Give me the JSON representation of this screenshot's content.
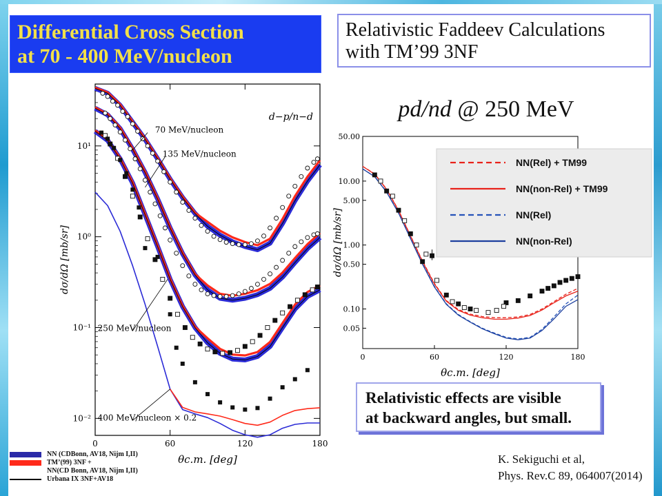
{
  "slide": {
    "title_lines": [
      "Differential Cross Section",
      "at 70 - 400 MeV/nucleon"
    ],
    "subtitle_lines": [
      "Relativistic Faddeev Calculations",
      "with TM’99 3NF"
    ],
    "panel_title_italic": "pd/nd",
    "panel_title_rest": " @ 250 MeV",
    "note_lines": [
      "Relativistic effects are visible",
      "at backward angles, but small."
    ],
    "citation_lines": [
      "K. Sekiguchi et al,",
      "Phys. Rev.C 89, 064007(2014)"
    ],
    "bottom_legend": [
      {
        "label": "NN (CDBonn, AV18, Nijm I,II)",
        "color": "#2a2aa8"
      },
      {
        "label": "TM’(99) 3NF +",
        "color": "#ff2a1a"
      },
      {
        "label": "NN(CD Bonn, AV18, Nijm I,II)",
        "color": ""
      },
      {
        "label": "Urbana IX 3NF+AV18",
        "color": "#000000"
      }
    ]
  },
  "chart_data": [
    {
      "type": "scatter",
      "panel": "left",
      "xlabel": "θc.m. [deg]",
      "ylabel": "dσ/dΩ [mb/sr]",
      "xlim": [
        0,
        180
      ],
      "ylim": [
        0.0065,
        48
      ],
      "log_y": true,
      "x_ticks": [
        0,
        60,
        120,
        180
      ],
      "y_ticks": [
        {
          "v": 10,
          "label": "10¹"
        },
        {
          "v": 1,
          "label": "10⁰"
        },
        {
          "v": 0.1,
          "label": "10⁻¹"
        },
        {
          "v": 0.01,
          "label": "10⁻²"
        }
      ],
      "reaction_label": "d−p/n−d",
      "annotations": [
        {
          "text": "70 MeV/nucleon",
          "x": 48,
          "y": 14
        },
        {
          "text": "135 MeV/nucleon",
          "x": 54,
          "y": 7.6
        },
        {
          "text": "250 MeV/nucleon",
          "x": 2,
          "y": 0.092
        },
        {
          "text": "400 MeV/nucleon × 0.2",
          "x": 2,
          "y": 0.0095
        }
      ],
      "series": [
        {
          "energy": "70 MeV/nucleon",
          "band_color": "#2b2bd6",
          "x": [
            0,
            10,
            20,
            30,
            40,
            50,
            60,
            70,
            80,
            90,
            100,
            110,
            120,
            130,
            140,
            150,
            160,
            170,
            180
          ],
          "y": [
            43,
            38,
            28,
            18.2,
            11.8,
            7.2,
            4.3,
            2.7,
            1.8,
            1.3,
            1.04,
            0.88,
            0.78,
            0.72,
            0.85,
            1.4,
            2.5,
            4.1,
            6.2
          ]
        },
        {
          "energy": "135 MeV/nucleon",
          "band_color": "#2b2bd6",
          "x": [
            0,
            10,
            20,
            30,
            40,
            50,
            60,
            70,
            80,
            90,
            100,
            110,
            120,
            130,
            140,
            150,
            160,
            170,
            180
          ],
          "y": [
            26,
            22,
            15.5,
            9.2,
            5.1,
            2.6,
            1.25,
            0.65,
            0.38,
            0.26,
            0.21,
            0.2,
            0.21,
            0.23,
            0.27,
            0.36,
            0.52,
            0.74,
            0.98
          ]
        },
        {
          "energy": "250 MeV/nucleon",
          "band_color": "#2b2bd6",
          "x": [
            0,
            10,
            20,
            30,
            40,
            50,
            60,
            70,
            80,
            90,
            100,
            110,
            120,
            130,
            140,
            150,
            160,
            170,
            180
          ],
          "y": [
            14.5,
            11.5,
            7.2,
            3.9,
            1.75,
            0.78,
            0.34,
            0.17,
            0.1,
            0.068,
            0.052,
            0.045,
            0.044,
            0.048,
            0.062,
            0.1,
            0.16,
            0.22,
            0.26
          ]
        },
        {
          "energy": "400 MeV/nucleon × 0.2",
          "band_color": "#2b2bd6",
          "x": [
            0,
            10,
            20,
            30,
            40,
            50,
            60,
            70,
            80,
            90,
            100,
            110,
            120,
            130,
            140,
            150,
            160,
            170,
            180
          ],
          "y": [
            3.1,
            2.2,
            1.15,
            0.48,
            0.18,
            0.062,
            0.021,
            0.0125,
            0.0112,
            0.0102,
            0.0088,
            0.0074,
            0.0066,
            0.0062,
            0.0066,
            0.0078,
            0.0086,
            0.0089,
            0.0089
          ]
        },
        {
          "energy": "400 MeV/nucleon × 0.2 (TM99)",
          "band_color": "#ff2a1a",
          "x": [
            60,
            70,
            80,
            90,
            100,
            110,
            120,
            130,
            140,
            150,
            160,
            170,
            180
          ],
          "y": [
            0.021,
            0.0132,
            0.0118,
            0.0112,
            0.0106,
            0.0097,
            0.0088,
            0.0084,
            0.0091,
            0.0108,
            0.0122,
            0.0128,
            0.0131
          ]
        }
      ],
      "data_points": [
        {
          "energy": "70 MeV/nucleon",
          "x": [
            6,
            10,
            14,
            18,
            22,
            26,
            30,
            34,
            38,
            42,
            46,
            50,
            55,
            60,
            65,
            70,
            75,
            80,
            85,
            90,
            95,
            100,
            105,
            110,
            115,
            120,
            125,
            130,
            135,
            140,
            145,
            150,
            155,
            160,
            165,
            170,
            175,
            178
          ],
          "y": [
            38,
            35,
            31,
            28,
            24,
            21,
            17.5,
            14.5,
            12,
            10,
            8.3,
            6.8,
            5.2,
            4,
            3.1,
            2.4,
            1.95,
            1.6,
            1.33,
            1.15,
            1.01,
            0.93,
            0.87,
            0.84,
            0.82,
            0.82,
            0.84,
            0.9,
            1.02,
            1.25,
            1.6,
            2.1,
            2.8,
            3.6,
            4.6,
            5.7,
            6.6,
            7.2
          ]
        },
        {
          "energy": "135 MeV/nucleon",
          "x": [
            8,
            12,
            16,
            20,
            24,
            28,
            32,
            36,
            40,
            44,
            48,
            52,
            56,
            60,
            65,
            70,
            75,
            80,
            85,
            90,
            95,
            100,
            105,
            110,
            115,
            120,
            125,
            130,
            135,
            140,
            145,
            150,
            155,
            160,
            165,
            170,
            175,
            178
          ],
          "y": [
            23,
            20,
            17,
            14.2,
            11.6,
            9.3,
            7.2,
            5.6,
            4.2,
            3.1,
            2.3,
            1.7,
            1.25,
            0.92,
            0.66,
            0.48,
            0.37,
            0.3,
            0.26,
            0.235,
            0.225,
            0.22,
            0.22,
            0.225,
            0.235,
            0.25,
            0.27,
            0.3,
            0.34,
            0.39,
            0.46,
            0.55,
            0.66,
            0.78,
            0.88,
            0.98,
            1.05,
            1.08
          ]
        },
        {
          "energy": "250 MeV/nucleon",
          "x": [
            8,
            12,
            18,
            24,
            30,
            36,
            42,
            48,
            54,
            60,
            66,
            72,
            78,
            84,
            90,
            96,
            102,
            108,
            114,
            120,
            126,
            132,
            138,
            144,
            150,
            156,
            162,
            168,
            174,
            178
          ],
          "y": [
            13,
            10.5,
            7.3,
            4.6,
            2.8,
            1.65,
            0.95,
            0.56,
            0.34,
            0.21,
            0.14,
            0.1,
            0.078,
            0.066,
            0.058,
            0.054,
            0.052,
            0.053,
            0.056,
            0.062,
            0.07,
            0.082,
            0.1,
            0.12,
            0.145,
            0.17,
            0.2,
            0.23,
            0.26,
            0.28
          ]
        },
        {
          "energy": "400 MeV/nucleon × 0.2",
          "x": [
            5,
            10,
            15,
            20,
            25,
            30,
            35,
            40,
            50,
            60,
            65,
            70,
            80,
            90,
            100,
            110,
            120,
            130,
            140,
            150,
            160,
            170
          ],
          "y": [
            14,
            12,
            9.5,
            7,
            5,
            3.3,
            2.1,
            0.75,
            0.6,
            0.14,
            0.06,
            0.04,
            0.025,
            0.0185,
            0.015,
            0.0132,
            0.0125,
            0.013,
            0.0165,
            0.022,
            0.027,
            0.034
          ]
        }
      ]
    },
    {
      "type": "line",
      "panel": "right",
      "xlabel": "θc.m. [deg]",
      "ylabel": "dσ/dΩ [mb/sr]",
      "xlim": [
        0,
        180
      ],
      "ylim": [
        0.024,
        50
      ],
      "log_y": true,
      "x_ticks": [
        0,
        60,
        120,
        180
      ],
      "y_ticks": [
        {
          "v": 50,
          "label": "50.00"
        },
        {
          "v": 10,
          "label": "10.00"
        },
        {
          "v": 5,
          "label": "5.00"
        },
        {
          "v": 1,
          "label": "1.00"
        },
        {
          "v": 0.5,
          "label": "0.50"
        },
        {
          "v": 0.1,
          "label": "0.10"
        },
        {
          "v": 0.05,
          "label": "0.05"
        }
      ],
      "legend": [
        {
          "label": "NN(Rel) + TM99",
          "color": "#e8221a",
          "dash": true
        },
        {
          "label": "NN(non-Rel) + TM99",
          "color": "#e8221a",
          "dash": false
        },
        {
          "label": "NN(Rel)",
          "color": "#2452b8",
          "dash": true
        },
        {
          "label": "NN(non-Rel)",
          "color": "#1c3f9e",
          "dash": false
        }
      ],
      "legend_placement": "top-right",
      "series": [
        {
          "name": "NN(Rel) + TM99",
          "color": "#e8221a",
          "dash": true,
          "x": [
            0,
            10,
            20,
            30,
            40,
            50,
            60,
            70,
            80,
            90,
            100,
            110,
            120,
            130,
            140,
            150,
            160,
            170,
            180
          ],
          "y": [
            17,
            13,
            7.5,
            3.5,
            1.4,
            0.56,
            0.25,
            0.135,
            0.098,
            0.083,
            0.076,
            0.073,
            0.073,
            0.075,
            0.082,
            0.1,
            0.13,
            0.17,
            0.21
          ]
        },
        {
          "name": "NN(non-Rel) + TM99",
          "color": "#e8221a",
          "dash": false,
          "x": [
            0,
            10,
            20,
            30,
            40,
            50,
            60,
            70,
            80,
            90,
            100,
            110,
            120,
            130,
            140,
            150,
            160,
            170,
            180
          ],
          "y": [
            17,
            12.8,
            7.4,
            3.45,
            1.38,
            0.55,
            0.245,
            0.132,
            0.095,
            0.08,
            0.073,
            0.069,
            0.069,
            0.072,
            0.079,
            0.096,
            0.125,
            0.16,
            0.19
          ]
        },
        {
          "name": "NN(Rel)",
          "color": "#2452b8",
          "dash": true,
          "x": [
            0,
            10,
            20,
            30,
            40,
            50,
            60,
            70,
            80,
            90,
            100,
            110,
            120,
            130,
            140,
            150,
            160,
            170,
            180
          ],
          "y": [
            15.5,
            11.8,
            6.8,
            3.2,
            1.28,
            0.51,
            0.225,
            0.12,
            0.082,
            0.063,
            0.05,
            0.042,
            0.036,
            0.034,
            0.036,
            0.048,
            0.075,
            0.12,
            0.165
          ]
        },
        {
          "name": "NN(non-Rel)",
          "color": "#1c3f9e",
          "dash": false,
          "x": [
            0,
            10,
            20,
            30,
            40,
            50,
            60,
            70,
            80,
            90,
            100,
            110,
            120,
            130,
            140,
            150,
            160,
            170,
            180
          ],
          "y": [
            15.5,
            11.7,
            6.7,
            3.15,
            1.26,
            0.5,
            0.22,
            0.118,
            0.08,
            0.062,
            0.049,
            0.041,
            0.035,
            0.033,
            0.035,
            0.046,
            0.07,
            0.11,
            0.14
          ]
        }
      ],
      "data_points": [
        {
          "marker": "filled-square",
          "x": [
            10,
            20,
            30,
            40,
            50,
            58,
            70,
            80,
            90,
            120,
            130,
            140,
            150,
            155,
            160,
            165,
            170,
            175,
            180
          ],
          "y": [
            12.5,
            7,
            3.5,
            1.5,
            0.55,
            0.68,
            0.165,
            0.12,
            0.1,
            0.125,
            0.135,
            0.16,
            0.19,
            0.21,
            0.23,
            0.26,
            0.28,
            0.3,
            0.32
          ]
        },
        {
          "marker": "open-square",
          "x": [
            15,
            25,
            35,
            45,
            53,
            62,
            75,
            85,
            95,
            105,
            112,
            118
          ],
          "y": [
            10,
            5.8,
            2.4,
            1.0,
            0.72,
            0.28,
            0.13,
            0.105,
            0.095,
            0.088,
            0.095,
            0.11
          ]
        }
      ]
    }
  ]
}
